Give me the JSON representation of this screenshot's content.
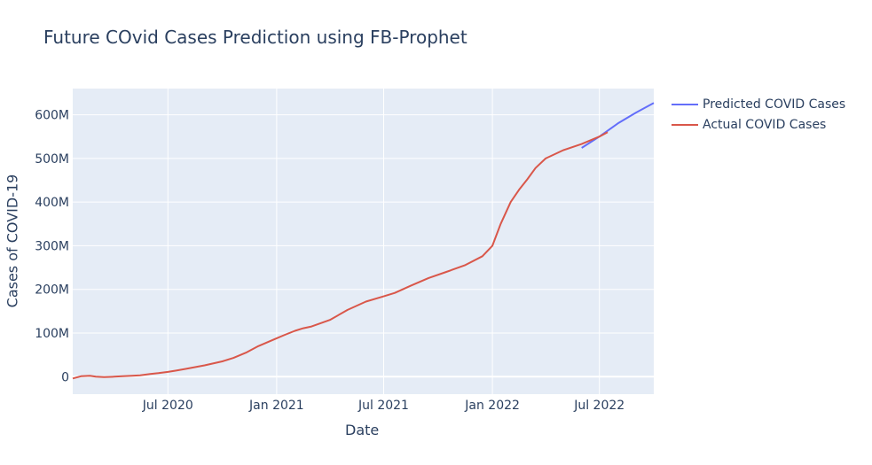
{
  "chart_data": {
    "type": "line",
    "title": "Future COvid Cases Prediction using FB-Prophet",
    "xlabel": "Date",
    "ylabel": "Cases of COVID-19",
    "x_range": [
      "2020-01-22",
      "2022-10-01"
    ],
    "ylim": [
      -40000000,
      660000000
    ],
    "x_ticks": [
      {
        "date": "2020-07-01",
        "label": "Jul 2020"
      },
      {
        "date": "2021-01-01",
        "label": "Jan 2021"
      },
      {
        "date": "2021-07-01",
        "label": "Jul 2021"
      },
      {
        "date": "2022-01-01",
        "label": "Jan 2022"
      },
      {
        "date": "2022-07-01",
        "label": "Jul 2022"
      }
    ],
    "y_ticks": [
      {
        "value": 0,
        "label": "0"
      },
      {
        "value": 100000000,
        "label": "100M"
      },
      {
        "value": 200000000,
        "label": "200M"
      },
      {
        "value": 300000000,
        "label": "300M"
      },
      {
        "value": 400000000,
        "label": "400M"
      },
      {
        "value": 500000000,
        "label": "500M"
      },
      {
        "value": 600000000,
        "label": "600M"
      }
    ],
    "grid": true,
    "legend_position": "top-right-outside",
    "series": [
      {
        "name": "Predicted COVID Cases",
        "color": "#636efa",
        "points": [
          [
            "2022-06-01",
            524000000
          ],
          [
            "2022-07-01",
            550000000
          ],
          [
            "2022-08-01",
            580000000
          ],
          [
            "2022-09-01",
            605000000
          ],
          [
            "2022-10-01",
            627000000
          ]
        ]
      },
      {
        "name": "Actual COVID Cases",
        "color": "#d9574a",
        "points": [
          [
            "2020-01-22",
            -4000000
          ],
          [
            "2020-02-05",
            1000000
          ],
          [
            "2020-02-20",
            2000000
          ],
          [
            "2020-03-01",
            0
          ],
          [
            "2020-03-15",
            -1000000
          ],
          [
            "2020-04-01",
            0
          ],
          [
            "2020-04-15",
            1000000
          ],
          [
            "2020-05-01",
            2000000
          ],
          [
            "2020-05-15",
            3000000
          ],
          [
            "2020-06-01",
            6000000
          ],
          [
            "2020-06-15",
            8000000
          ],
          [
            "2020-07-01",
            11000000
          ],
          [
            "2020-07-15",
            14000000
          ],
          [
            "2020-08-01",
            18000000
          ],
          [
            "2020-09-01",
            26000000
          ],
          [
            "2020-10-01",
            35000000
          ],
          [
            "2020-10-20",
            43000000
          ],
          [
            "2020-11-10",
            55000000
          ],
          [
            "2020-12-01",
            70000000
          ],
          [
            "2021-01-01",
            88000000
          ],
          [
            "2021-01-15",
            96000000
          ],
          [
            "2021-02-01",
            105000000
          ],
          [
            "2021-02-15",
            111000000
          ],
          [
            "2021-03-01",
            115000000
          ],
          [
            "2021-04-01",
            130000000
          ],
          [
            "2021-05-01",
            153000000
          ],
          [
            "2021-06-01",
            172000000
          ],
          [
            "2021-07-01",
            184000000
          ],
          [
            "2021-07-20",
            192000000
          ],
          [
            "2021-08-15",
            208000000
          ],
          [
            "2021-09-15",
            226000000
          ],
          [
            "2021-10-15",
            240000000
          ],
          [
            "2021-11-15",
            255000000
          ],
          [
            "2021-12-15",
            276000000
          ],
          [
            "2022-01-01",
            300000000
          ],
          [
            "2022-01-15",
            350000000
          ],
          [
            "2022-02-01",
            400000000
          ],
          [
            "2022-02-15",
            428000000
          ],
          [
            "2022-03-01",
            452000000
          ],
          [
            "2022-03-15",
            478000000
          ],
          [
            "2022-04-01",
            500000000
          ],
          [
            "2022-05-01",
            519000000
          ],
          [
            "2022-06-01",
            533000000
          ],
          [
            "2022-07-01",
            550000000
          ],
          [
            "2022-07-15",
            560000000
          ]
        ]
      }
    ]
  }
}
